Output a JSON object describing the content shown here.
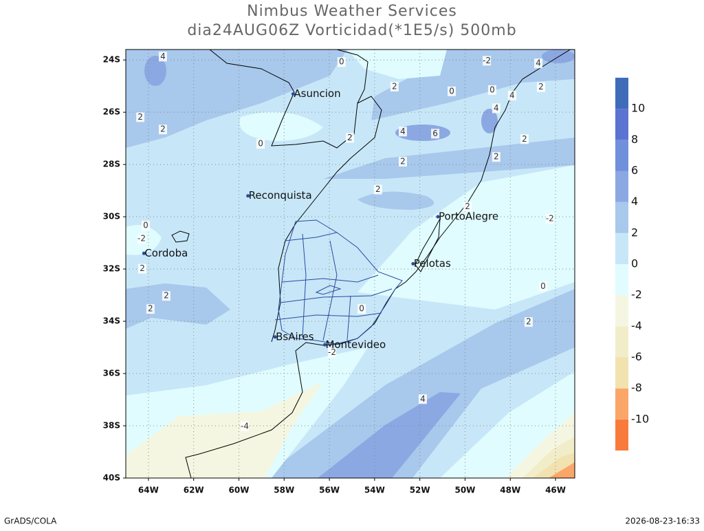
{
  "title": "Nimbus Weather Services",
  "subtitle": "dia24AUG06Z Vorticidad(*1E5/s) 500mb",
  "footer_left": "GrADS/COLA",
  "footer_right": "2026-08-23-16:33",
  "map": {
    "xlim": [
      -65,
      -45.15
    ],
    "ylim": [
      -40,
      -23.6
    ],
    "xticks": [
      {
        "value": -64,
        "label": "64W"
      },
      {
        "value": -62,
        "label": "62W"
      },
      {
        "value": -60,
        "label": "60W"
      },
      {
        "value": -58,
        "label": "58W"
      },
      {
        "value": -56,
        "label": "56W"
      },
      {
        "value": -54,
        "label": "54W"
      },
      {
        "value": -52,
        "label": "52W"
      },
      {
        "value": -50,
        "label": "50W"
      },
      {
        "value": -48,
        "label": "48W"
      },
      {
        "value": -46,
        "label": "46W"
      }
    ],
    "yticks": [
      {
        "value": -24,
        "label": "24S"
      },
      {
        "value": -26,
        "label": "26S"
      },
      {
        "value": -28,
        "label": "28S"
      },
      {
        "value": -30,
        "label": "30S"
      },
      {
        "value": -32,
        "label": "32S"
      },
      {
        "value": -34,
        "label": "34S"
      },
      {
        "value": -36,
        "label": "36S"
      },
      {
        "value": -38,
        "label": "38S"
      },
      {
        "value": -40,
        "label": "40S"
      }
    ],
    "grid": true,
    "cities": [
      {
        "name": "Asuncion",
        "lon": -57.6,
        "lat": -25.3
      },
      {
        "name": "Reconquista",
        "lon": -59.6,
        "lat": -29.2
      },
      {
        "name": "PortoAlegre",
        "lon": -51.2,
        "lat": -30.0
      },
      {
        "name": "Cordoba",
        "lon": -64.2,
        "lat": -31.4
      },
      {
        "name": "Pelotas",
        "lon": -52.3,
        "lat": -31.8
      },
      {
        "name": "BsAires",
        "lon": -58.4,
        "lat": -34.6
      },
      {
        "name": "Montevideo",
        "lon": -56.2,
        "lat": -34.9
      }
    ],
    "contour_labels": [
      {
        "value": 4,
        "lon": -63.36,
        "lat": -23.87
      },
      {
        "value": 0,
        "lon": -55.46,
        "lat": -24.08
      },
      {
        "value": -2,
        "lon": -49.04,
        "lat": -24.03
      },
      {
        "value": 4,
        "lon": -46.76,
        "lat": -24.13
      },
      {
        "value": 2,
        "lon": -53.12,
        "lat": -25.02
      },
      {
        "value": 0,
        "lon": -50.59,
        "lat": -25.2
      },
      {
        "value": 0,
        "lon": -48.8,
        "lat": -25.15
      },
      {
        "value": 2,
        "lon": -46.64,
        "lat": -25.04
      },
      {
        "value": 4,
        "lon": -47.92,
        "lat": -25.36
      },
      {
        "value": 2,
        "lon": -63.36,
        "lat": -26.66
      },
      {
        "value": 2,
        "lon": -64.36,
        "lat": -26.19
      },
      {
        "value": 4,
        "lon": -52.75,
        "lat": -26.74
      },
      {
        "value": 6,
        "lon": -51.32,
        "lat": -26.82
      },
      {
        "value": 4,
        "lon": -48.62,
        "lat": -25.85
      },
      {
        "value": 2,
        "lon": -47.37,
        "lat": -27.03
      },
      {
        "value": 2,
        "lon": -48.62,
        "lat": -27.71
      },
      {
        "value": 0,
        "lon": -59.04,
        "lat": -27.21
      },
      {
        "value": 2,
        "lon": -55.09,
        "lat": -26.98
      },
      {
        "value": 2,
        "lon": -52.75,
        "lat": -27.89
      },
      {
        "value": 2,
        "lon": -53.85,
        "lat": -28.96
      },
      {
        "value": 2,
        "lon": -49.89,
        "lat": -29.61
      },
      {
        "value": -2,
        "lon": -46.25,
        "lat": -30.08
      },
      {
        "value": 0,
        "lon": -64.12,
        "lat": -30.34
      },
      {
        "value": -2,
        "lon": -64.3,
        "lat": -30.84
      },
      {
        "value": 2,
        "lon": -64.27,
        "lat": -31.99
      },
      {
        "value": 2,
        "lon": -63.21,
        "lat": -33.03
      },
      {
        "value": 2,
        "lon": -63.91,
        "lat": -33.53
      },
      {
        "value": 0,
        "lon": -46.55,
        "lat": -32.67
      },
      {
        "value": 2,
        "lon": -47.19,
        "lat": -34.03
      },
      {
        "value": 0,
        "lon": -54.57,
        "lat": -33.53
      },
      {
        "value": -2,
        "lon": -55.88,
        "lat": -35.2
      },
      {
        "value": 4,
        "lon": -51.87,
        "lat": -36.98
      },
      {
        "value": -4,
        "lon": -59.74,
        "lat": -38.02
      }
    ]
  },
  "colorbar": {
    "levels": [
      -10,
      -8,
      -6,
      -4,
      -2,
      0,
      2,
      4,
      6,
      8,
      10
    ],
    "colors": [
      "#f97b3b",
      "#fba669",
      "#f1e2b0",
      "#f2edc9",
      "#f5f6e1",
      "#e0fcfe",
      "#c7e7f8",
      "#a8c8ec",
      "#8ba8e2",
      "#7090dc",
      "#5b74d2",
      "#3f6cb8"
    ]
  }
}
